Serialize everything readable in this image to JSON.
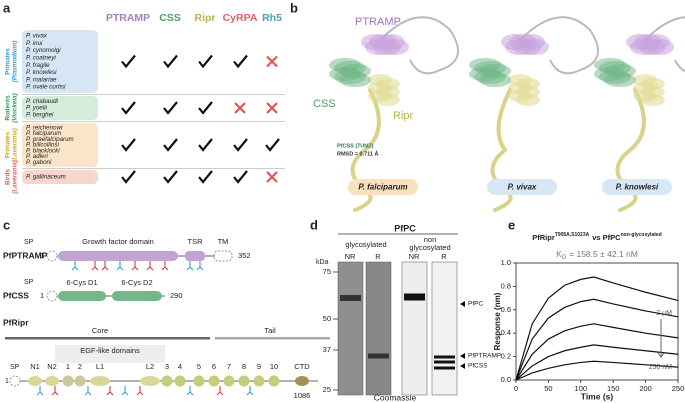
{
  "panel_labels": [
    "a",
    "b",
    "c",
    "d",
    "e"
  ],
  "panel_a": {
    "headers": [
      {
        "text": "PTRAMP",
        "color": "#a67fc2"
      },
      {
        "text": "CSS",
        "color": "#4e9e68"
      },
      {
        "text": "Ripr",
        "color": "#b9b64c"
      },
      {
        "text": "CyRPA",
        "color": "#d4656b"
      },
      {
        "text": "Rh5",
        "color": "#4aa3aa"
      }
    ],
    "groups": [
      {
        "label": "Primates",
        "sublabel": "(Plasmodium)",
        "color": "#d6e6f5",
        "label_color": "#2f9fd6",
        "species": [
          "P. vivax",
          "P. inui",
          "P. cynomolgi",
          "P. coatneyi",
          "P. fragile",
          "P. knowlesi",
          "P. malariae",
          "P. ovale curtisi"
        ],
        "present": [
          true,
          true,
          true,
          true,
          false
        ]
      },
      {
        "label": "Rodents",
        "sublabel": "(Vinckeia)",
        "color": "#d5ebdb",
        "label_color": "#2b9a5a",
        "species": [
          "P. chabaudi",
          "P. yoelii",
          "P. berghei"
        ],
        "present": [
          true,
          true,
          true,
          false,
          false
        ]
      },
      {
        "label": "Primates",
        "sublabel": "(Laverania)",
        "color": "#fbe5c8",
        "label_color": "#e0a020",
        "species": [
          "P. reichenowi",
          "P. falciparum",
          "P. praefalciparum",
          "P. billcollinsi",
          "P. blacklocki",
          "P. adleri",
          "P. gaboni"
        ],
        "present": [
          true,
          true,
          true,
          true,
          true
        ]
      },
      {
        "label": "Birds",
        "sublabel": "(Laverania)",
        "color": "#f9d6cd",
        "label_color": "#e06060",
        "species": [
          "P. gallinaceum"
        ],
        "present": [
          true,
          true,
          true,
          true,
          false
        ]
      }
    ]
  },
  "panel_b": {
    "labels": [
      "PTRAMP",
      "CSS",
      "Ripr"
    ],
    "annotation": [
      "PfCSS (7UNZ)",
      "RMSD = 0.711 Å"
    ],
    "species": [
      "P. falciparum",
      "P. vivax",
      "P. knowlesi"
    ]
  },
  "panel_c": {
    "ptramp": {
      "name": "PfPTRAMP",
      "start": 1,
      "end": 352,
      "sp": "SP",
      "domain": "Growth factor domain",
      "tsr": "TSR",
      "tm": "TM"
    },
    "css": {
      "name": "PfCSS",
      "start": 1,
      "end": 290,
      "sp": "SP",
      "d1": "6-Cys D1",
      "d2": "6-Cys D2"
    },
    "ripr": {
      "name": "PfRipr",
      "start": 1,
      "end": 1086,
      "core": "Core",
      "tail": "Tail",
      "egf_title": "EGF-like domains",
      "sp": "SP",
      "n1": "N1",
      "n2": "N2",
      "l1": "L1",
      "l2": "L2",
      "ctd": "CTD",
      "egf": [
        1,
        2,
        3,
        4,
        5,
        6,
        7,
        8,
        9,
        10
      ]
    }
  },
  "panel_d": {
    "title": "PfPC",
    "group_labels": [
      [
        "glycosylated"
      ],
      [
        "non",
        "glycosylated"
      ]
    ],
    "lanes": [
      "NR",
      "R",
      "NR",
      "R"
    ],
    "unit": "kDa",
    "markers": [
      75,
      50,
      37,
      25
    ],
    "bands": [
      "PfPC",
      "PfPTRAMP",
      "PfCSS"
    ],
    "stain": "Coomassie"
  },
  "chart_data": {
    "type": "line",
    "title": {
      "main": "PfRipr",
      "sup": "T905A,S1023A",
      "mid": "vs PfPC",
      "sup2": "non-glycosylated"
    },
    "kd": {
      "symbol": "K",
      "sub": "D",
      "text": "= 158.5 ± 42.1 nM"
    },
    "x_label": "Time (s)",
    "y_label": "Response (nm)",
    "x": [
      0,
      25,
      50,
      75,
      100,
      120,
      150,
      200,
      250
    ],
    "series": [
      {
        "color": "#111111",
        "values": [
          0,
          0.48,
          0.7,
          0.81,
          0.86,
          0.88,
          0.83,
          0.75,
          0.68
        ]
      },
      {
        "color": "#111111",
        "values": [
          0,
          0.35,
          0.53,
          0.62,
          0.67,
          0.69,
          0.65,
          0.59,
          0.54
        ]
      },
      {
        "color": "#111111",
        "values": [
          0,
          0.22,
          0.35,
          0.42,
          0.46,
          0.48,
          0.45,
          0.4,
          0.36
        ]
      },
      {
        "color": "#111111",
        "values": [
          0,
          0.12,
          0.2,
          0.25,
          0.28,
          0.3,
          0.28,
          0.25,
          0.22
        ]
      },
      {
        "color": "#111111",
        "values": [
          0,
          0.06,
          0.1,
          0.13,
          0.15,
          0.16,
          0.15,
          0.13,
          0.11
        ]
      }
    ],
    "annotations": [
      "2 µM",
      "250 nM"
    ],
    "xlim": [
      0,
      250
    ],
    "ylim": [
      0,
      1.0
    ],
    "xticks": [
      0,
      50,
      100,
      150,
      200,
      250
    ],
    "yticks": [
      {
        "value": 0,
        "label": "0.0"
      },
      {
        "value": 0.2,
        "label": "0.2"
      },
      {
        "value": 0.4,
        "label": "0.4"
      },
      {
        "value": 0.6,
        "label": "0.6"
      },
      {
        "value": 0.8,
        "label": "0.8"
      },
      {
        "value": 1.0,
        "label": "1.0"
      }
    ]
  }
}
